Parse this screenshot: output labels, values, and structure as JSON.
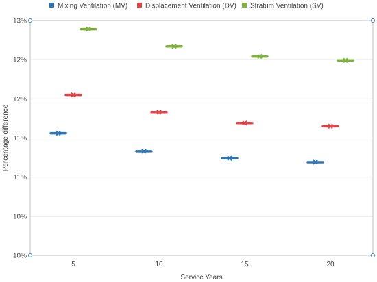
{
  "chart_data": {
    "type": "scatter",
    "categories": [
      "5",
      "10",
      "15",
      "20"
    ],
    "y_ticks": [
      {
        "value": 0.095,
        "label": "10%"
      },
      {
        "value": 0.1,
        "label": "10%"
      },
      {
        "value": 0.105,
        "label": "11%"
      },
      {
        "value": 0.11,
        "label": "11%"
      },
      {
        "value": 0.115,
        "label": "12%"
      },
      {
        "value": 0.12,
        "label": "12%"
      },
      {
        "value": 0.125,
        "label": "13%"
      }
    ],
    "ylim": [
      0.095,
      0.125
    ],
    "xlabel": "Service Years",
    "ylabel": "Percentage difference",
    "legend_position": "top",
    "grid": true,
    "series": [
      {
        "name": "Mixing Ventilation (MV)",
        "color": "#2E75B6",
        "x": [
          5,
          10,
          15,
          20
        ],
        "values": [
          0.1106,
          0.1083,
          0.1074,
          0.1069
        ]
      },
      {
        "name": "Displacement Ventilation (DV)",
        "color": "#E04446",
        "x": [
          5,
          10,
          15,
          20
        ],
        "values": [
          0.1155,
          0.1133,
          0.1119,
          0.1115
        ]
      },
      {
        "name": "Stratum Ventilation (SV)",
        "color": "#7FB13D",
        "x": [
          5,
          10,
          15,
          20
        ],
        "values": [
          0.1239,
          0.1217,
          0.1204,
          0.1199
        ]
      }
    ]
  }
}
